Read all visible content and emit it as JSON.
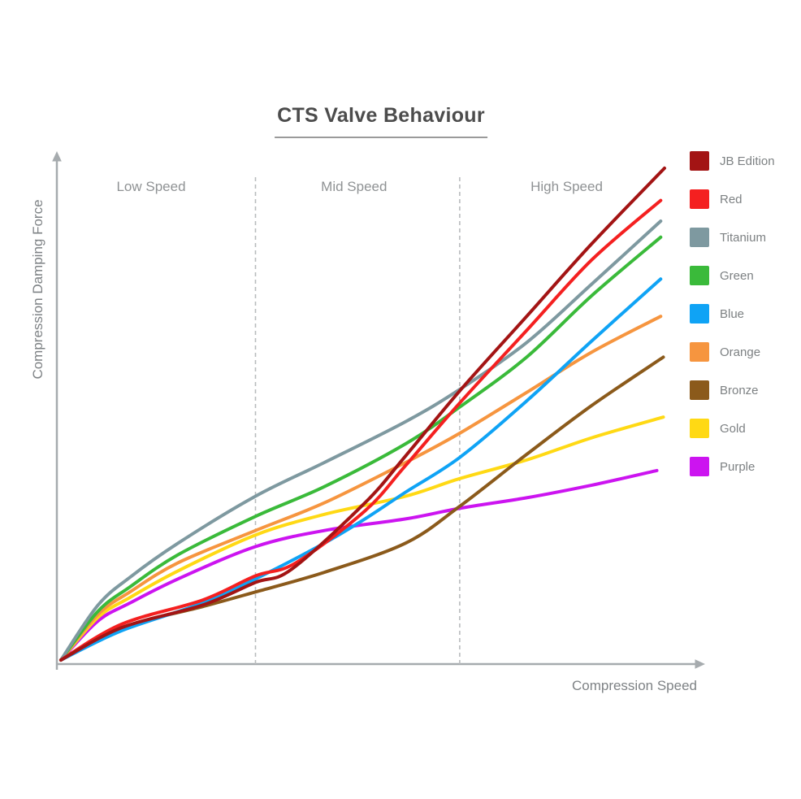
{
  "chart_data": {
    "type": "line",
    "title": "CTS Valve Behaviour",
    "xlabel": "Compression Speed",
    "ylabel": "Compression Damping Force",
    "xlim": [
      0,
      100
    ],
    "ylim": [
      0,
      100
    ],
    "grid": false,
    "legend_position": "right",
    "line_width": 4,
    "regions": [
      {
        "label": "Low Speed",
        "center_x": 14.0,
        "from_x": 0,
        "to_x": 30.2
      },
      {
        "label": "Mid Speed",
        "center_x": 45.5,
        "from_x": 30.2,
        "to_x": 61.9
      },
      {
        "label": "High Speed",
        "center_x": 78.5,
        "from_x": 61.9,
        "to_x": 100
      }
    ],
    "region_boundaries_x": [
      30.2,
      61.9
    ],
    "series": [
      {
        "name": "JB Edition",
        "color": "#A31414",
        "x": [
          0,
          9.4,
          22,
          30.2,
          35.8,
          47.2,
          53.5,
          61.9,
          72.3,
          82.4,
          93.7
        ],
        "y": [
          0,
          6.4,
          10.9,
          15.4,
          18.0,
          31.2,
          40.5,
          53.4,
          68.2,
          82.6,
          97.6
        ]
      },
      {
        "name": "Red",
        "color": "#F42020",
        "x": [
          0,
          9.4,
          22,
          30.2,
          36.5,
          47.2,
          53.5,
          61.9,
          72.3,
          82.4,
          93.1
        ],
        "y": [
          0,
          7.1,
          11.9,
          16.7,
          19.3,
          29.6,
          38.6,
          51.0,
          65.4,
          79.4,
          91.2
        ]
      },
      {
        "name": "Titanium",
        "color": "#7E99A0",
        "x": [
          0,
          5.7,
          10.7,
          18.2,
          30.2,
          40.9,
          53.5,
          61.9,
          72.3,
          82.4,
          93.1
        ],
        "y": [
          0,
          10.8,
          16.4,
          23.2,
          32.5,
          39.2,
          47.3,
          53.7,
          63.0,
          74.6,
          87.1
        ]
      },
      {
        "name": "Green",
        "color": "#3ABA3A",
        "x": [
          0,
          5.7,
          10.7,
          18.2,
          30.2,
          40.9,
          53.5,
          61.9,
          72.3,
          82.4,
          93.1
        ],
        "y": [
          0,
          9.6,
          14.5,
          20.9,
          28.5,
          34.4,
          42.9,
          50.2,
          60.1,
          72.3,
          83.9
        ]
      },
      {
        "name": "Blue",
        "color": "#0FA3F5",
        "x": [
          0,
          9.4,
          22,
          30.2,
          40.9,
          47.2,
          53.5,
          61.9,
          72.3,
          82.4,
          93.1
        ],
        "y": [
          0,
          5.8,
          11.3,
          16.1,
          23.2,
          28.0,
          33.3,
          40.2,
          51.4,
          63.3,
          75.6
        ]
      },
      {
        "name": "Orange",
        "color": "#F6953F",
        "x": [
          0,
          5.7,
          10.7,
          18.2,
          30.2,
          40.9,
          53.5,
          61.9,
          72.3,
          82.4,
          93.1
        ],
        "y": [
          0,
          9.0,
          13.5,
          19.3,
          25.7,
          31.2,
          39.2,
          45.0,
          53.1,
          61.1,
          68.2
        ]
      },
      {
        "name": "Bronze",
        "color": "#8B5A1B",
        "x": [
          0,
          9.4,
          22,
          30.2,
          40.9,
          53.5,
          61.9,
          72.3,
          82.4,
          93.5
        ],
        "y": [
          0,
          6.4,
          10.6,
          13.5,
          17.4,
          23.2,
          30.5,
          40.8,
          50.5,
          60.1
        ]
      },
      {
        "name": "Gold",
        "color": "#FFD914",
        "x": [
          0,
          5.7,
          10.7,
          18.2,
          30.2,
          40.9,
          53.5,
          61.9,
          72.3,
          82.4,
          93.5
        ],
        "y": [
          0,
          8.4,
          12.4,
          17.7,
          24.8,
          28.9,
          32.5,
          36.0,
          39.7,
          44.1,
          48.2
        ]
      },
      {
        "name": "Purple",
        "color": "#CC14F0",
        "x": [
          0,
          5.7,
          10.7,
          18.2,
          30.2,
          40.9,
          53.5,
          61.9,
          72.3,
          82.4,
          92.5
        ],
        "y": [
          0,
          7.7,
          11.3,
          16.1,
          22.5,
          25.7,
          28.0,
          30.1,
          32.2,
          34.7,
          37.6
        ]
      }
    ]
  },
  "colors": {
    "axis": "#a6abae",
    "boundary_dash": "#b9bcbe",
    "title_text": "#4c4c4c",
    "label_text": "#85898c"
  }
}
